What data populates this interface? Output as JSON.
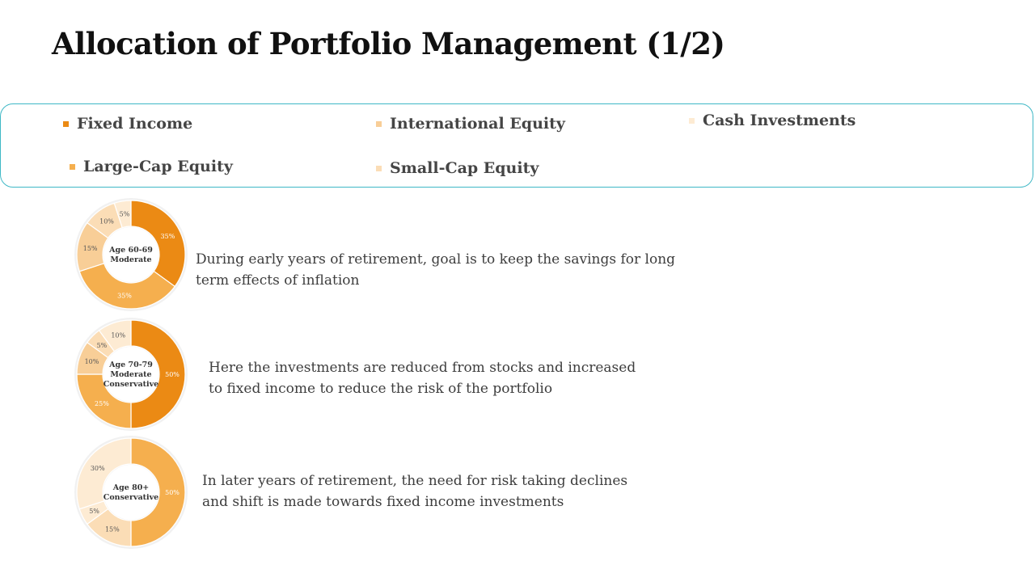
{
  "title": "Allocation of Portfolio Management (1/2)",
  "colors": {
    "fixed_income": "#EB8A14",
    "large_cap": "#F5AF4E",
    "international": "#F8CE97",
    "small_cap": "#FBDDB6",
    "cash": "#FDEBD3",
    "legend_border": "#3FB8C6"
  },
  "legend": [
    {
      "label": "Fixed Income",
      "color": "#EB8A14"
    },
    {
      "label": "International Equity",
      "color": "#F8CE97"
    },
    {
      "label": "Cash Investments",
      "color": "#FDEBD3"
    },
    {
      "label": "Large-Cap Equity",
      "color": "#F5AF4E"
    },
    {
      "label": "Small-Cap Equity",
      "color": "#FBDDB6"
    }
  ],
  "chart_data": [
    {
      "type": "pie",
      "center_label": [
        "Age 60-69",
        "Moderate"
      ],
      "slices": [
        {
          "value": 35,
          "label": "35%",
          "color": "#EB8A14"
        },
        {
          "value": 35,
          "label": "35%",
          "color": "#F5AF4E"
        },
        {
          "value": 15,
          "label": "15%",
          "color": "#F8CE97"
        },
        {
          "value": 10,
          "label": "10%",
          "color": "#FBDDB6"
        },
        {
          "value": 5,
          "label": "5%",
          "color": "#FDEBD3"
        }
      ]
    },
    {
      "type": "pie",
      "center_label": [
        "Age 70-79",
        "Moderate",
        "Conservative"
      ],
      "slices": [
        {
          "value": 50,
          "label": "50%",
          "color": "#EB8A14"
        },
        {
          "value": 25,
          "label": "25%",
          "color": "#F5AF4E"
        },
        {
          "value": 10,
          "label": "10%",
          "color": "#F8CE97"
        },
        {
          "value": 5,
          "label": "5%",
          "color": "#FBDDB6"
        },
        {
          "value": 10,
          "label": "10%",
          "color": "#FDEBD3"
        }
      ]
    },
    {
      "type": "pie",
      "center_label": [
        "Age 80+",
        "Conservative"
      ],
      "slices": [
        {
          "value": 50,
          "label": "50%",
          "color": "#F5AF4E"
        },
        {
          "value": 15,
          "label": "15%",
          "color": "#FBDDB6"
        },
        {
          "value": 5,
          "label": "5%",
          "color": "#FDEBD3"
        },
        {
          "value": 30,
          "label": "30%",
          "color": "#FDEBD3"
        }
      ]
    }
  ],
  "descriptions": [
    "During early years of retirement, goal is to keep the savings for long term effects of inflation",
    "Here the investments are reduced from stocks and increased to fixed income to reduce the risk of the portfolio",
    "In later years of retirement, the need for risk taking declines and shift is made towards fixed income investments"
  ]
}
